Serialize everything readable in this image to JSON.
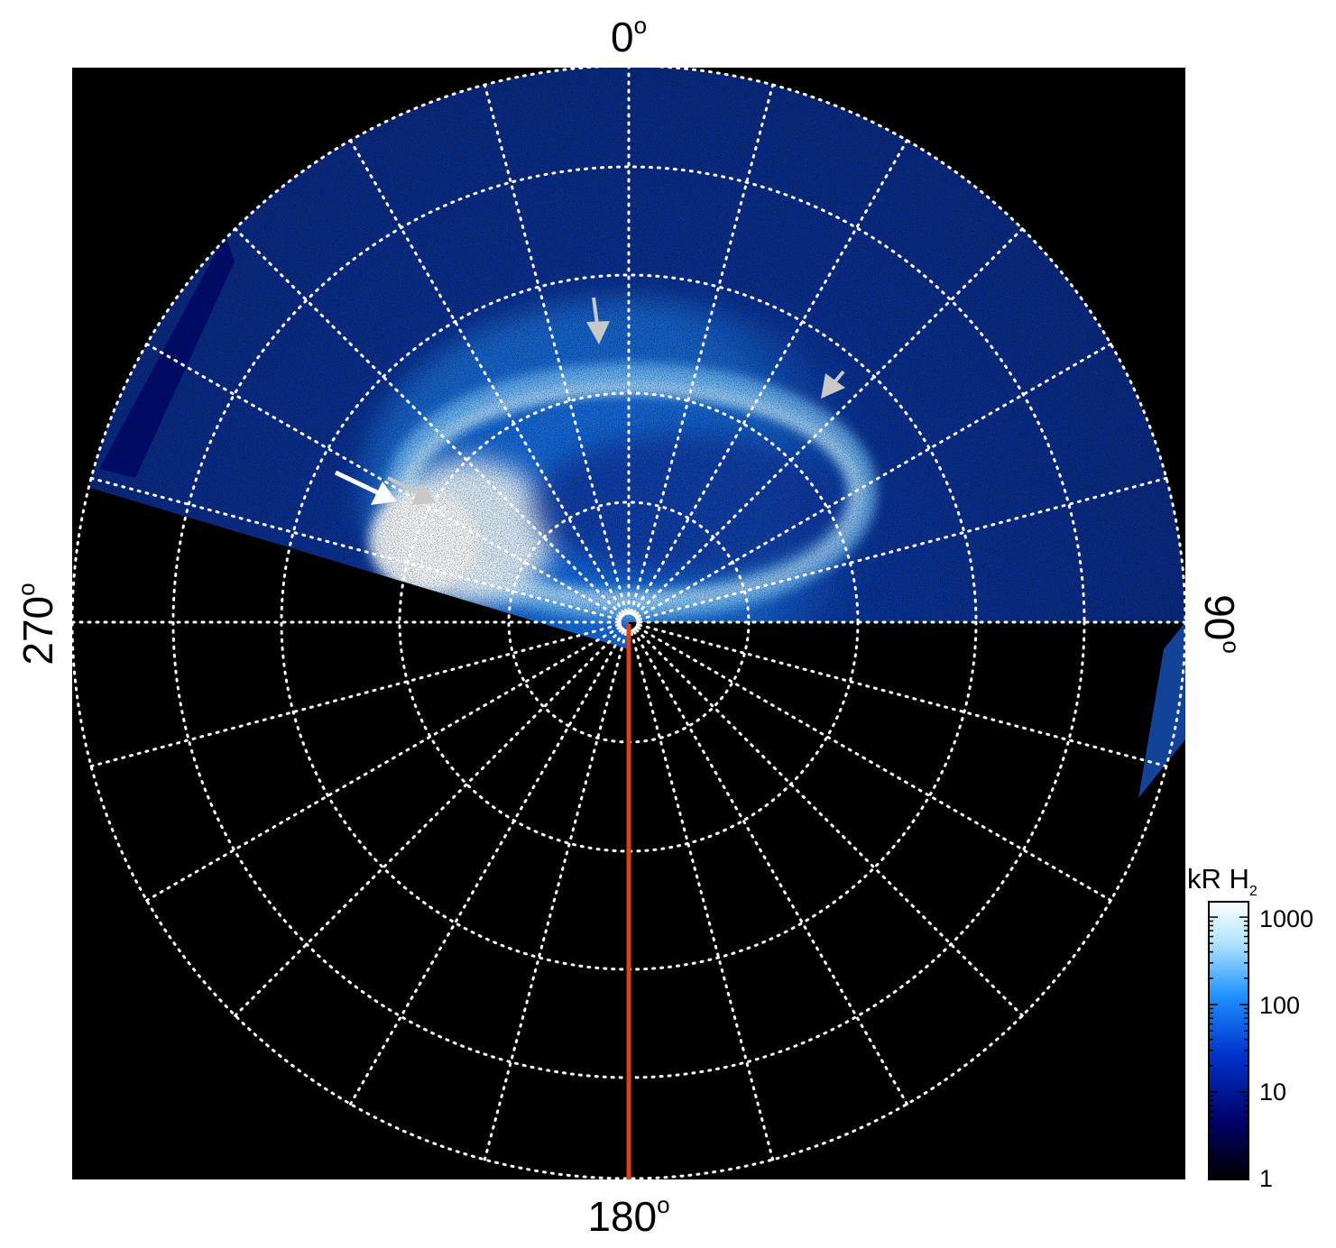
{
  "orientation_labels": {
    "top": "0",
    "right": "90",
    "bottom": "180",
    "left": "270",
    "unit_symbol": "o"
  },
  "colorbar": {
    "title_main": "kR H",
    "title_sub": "2",
    "ticks": [
      "1000",
      "100",
      "10",
      "1"
    ],
    "values": [
      1000,
      100,
      10,
      1
    ],
    "scale": "log",
    "range": [
      1,
      1500
    ],
    "colors": [
      "#000000",
      "#000066",
      "#0033cc",
      "#1e90ff",
      "#aee4ff",
      "#ffffff"
    ]
  },
  "colors": {
    "background": "#000000",
    "grid": "#ffffff",
    "meridian_marker": "#d84315",
    "arrow_primary": "#ffffff",
    "arrow_secondary": "#c8c8c8"
  },
  "icons": [
    "arrow-icon-white",
    "arrow-icon-grey"
  ]
}
